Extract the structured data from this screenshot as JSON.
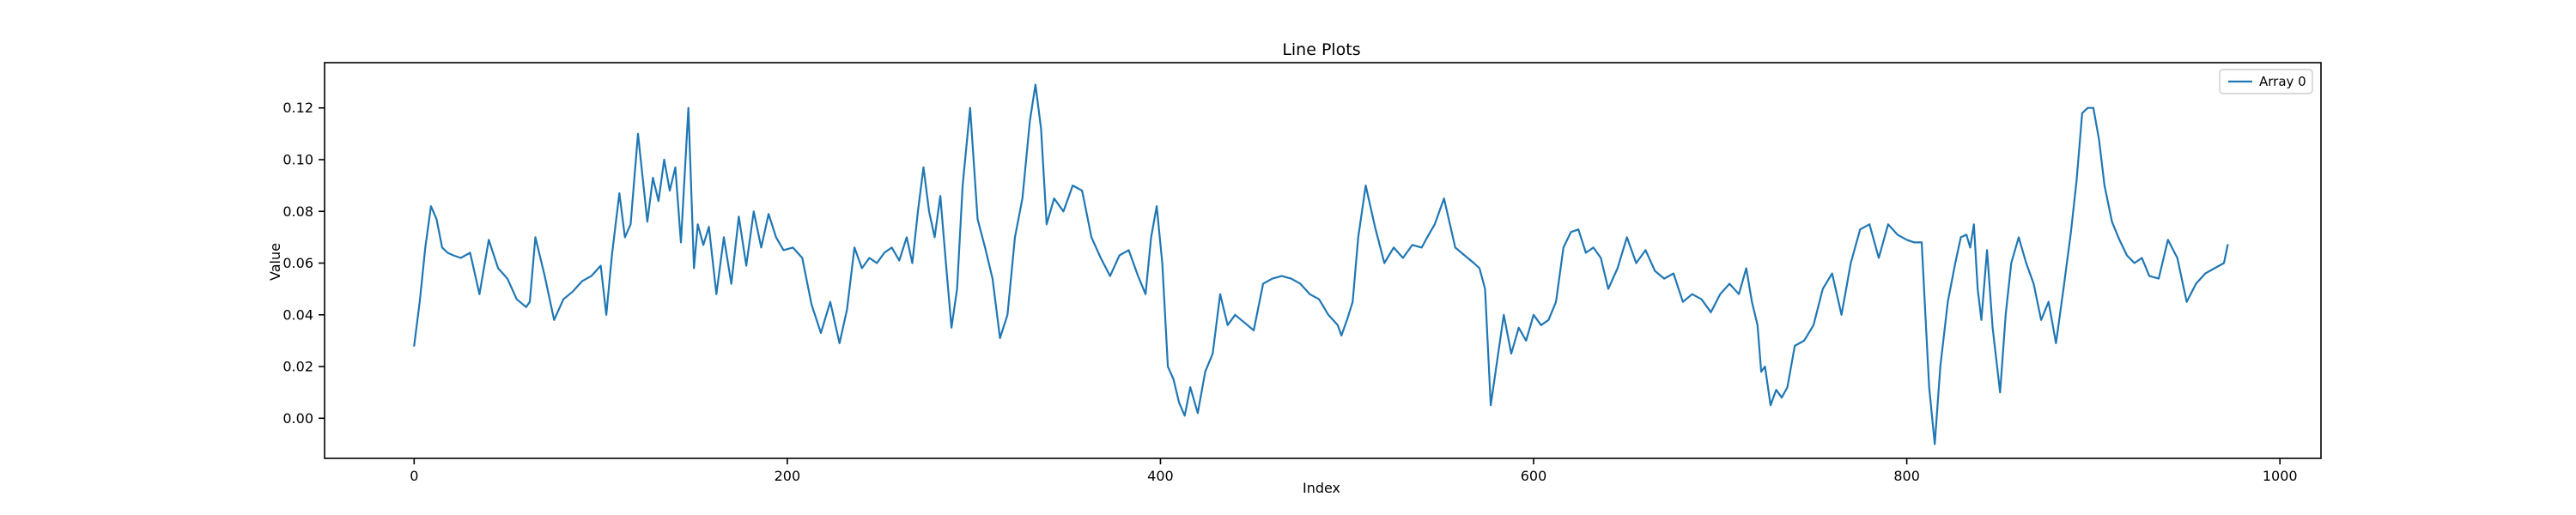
{
  "chart_data": {
    "type": "line",
    "title": "Line Plots",
    "xlabel": "Index",
    "ylabel": "Value",
    "xlim": [
      -48,
      1022
    ],
    "ylim": [
      -0.0155,
      0.1375
    ],
    "xticks": [
      0,
      200,
      400,
      600,
      800,
      1000
    ],
    "yticks": [
      0.0,
      0.02,
      0.04,
      0.06,
      0.08,
      0.1,
      0.12
    ],
    "xtick_labels": [
      "0",
      "200",
      "400",
      "600",
      "800",
      "1000"
    ],
    "ytick_labels": [
      "0.00",
      "0.02",
      "0.04",
      "0.06",
      "0.08",
      "0.10",
      "0.12"
    ],
    "grid": false,
    "legend": {
      "position": "top-right",
      "entries": [
        "Array 0"
      ]
    },
    "series": [
      {
        "name": "Array 0",
        "color": "#1f77b4",
        "x": [
          0,
          3,
          6,
          9,
          12,
          15,
          18,
          21,
          25,
          30,
          35,
          40,
          45,
          50,
          55,
          60,
          62,
          65,
          70,
          75,
          80,
          85,
          90,
          95,
          100,
          103,
          106,
          110,
          113,
          116,
          120,
          125,
          128,
          131,
          134,
          137,
          140,
          143,
          147,
          150,
          152,
          155,
          158,
          162,
          166,
          170,
          174,
          178,
          182,
          186,
          190,
          194,
          198,
          203,
          208,
          213,
          218,
          223,
          228,
          232,
          236,
          240,
          244,
          248,
          252,
          256,
          260,
          264,
          267,
          270,
          273,
          276,
          279,
          282,
          285,
          288,
          291,
          294,
          298,
          302,
          306,
          310,
          314,
          318,
          322,
          326,
          330,
          333,
          336,
          339,
          343,
          348,
          353,
          358,
          363,
          368,
          373,
          378,
          383,
          388,
          392,
          395,
          398,
          401,
          404,
          407,
          410,
          413,
          416,
          420,
          424,
          428,
          432,
          436,
          440,
          445,
          450,
          455,
          460,
          465,
          470,
          475,
          480,
          485,
          490,
          495,
          497,
          500,
          503,
          506,
          510,
          515,
          520,
          525,
          530,
          535,
          540,
          543,
          547,
          552,
          558,
          563,
          568,
          571,
          574,
          577,
          580,
          584,
          588,
          592,
          596,
          600,
          604,
          608,
          612,
          616,
          620,
          624,
          628,
          632,
          636,
          640,
          645,
          650,
          655,
          660,
          665,
          670,
          675,
          680,
          685,
          690,
          695,
          700,
          705,
          710,
          714,
          717,
          720,
          722,
          724,
          727,
          730,
          733,
          736,
          740,
          745,
          750,
          755,
          760,
          765,
          770,
          775,
          780,
          785,
          790,
          795,
          800,
          804,
          808,
          810,
          812,
          815,
          818,
          822,
          826,
          829,
          832,
          834,
          836,
          838,
          840,
          843,
          846,
          850,
          853,
          856,
          860,
          864,
          868,
          872,
          876,
          880,
          884,
          888,
          891,
          894,
          897,
          900,
          903,
          906,
          910,
          914,
          918,
          922,
          926,
          930,
          935,
          940,
          945,
          950,
          955,
          960,
          965,
          970,
          972
        ],
        "values": [
          0.028,
          0.045,
          0.066,
          0.082,
          0.077,
          0.066,
          0.064,
          0.063,
          0.062,
          0.064,
          0.048,
          0.069,
          0.058,
          0.054,
          0.046,
          0.043,
          0.045,
          0.07,
          0.055,
          0.038,
          0.046,
          0.049,
          0.053,
          0.055,
          0.059,
          0.04,
          0.063,
          0.087,
          0.07,
          0.075,
          0.11,
          0.076,
          0.093,
          0.084,
          0.1,
          0.088,
          0.097,
          0.068,
          0.12,
          0.058,
          0.075,
          0.067,
          0.074,
          0.048,
          0.07,
          0.052,
          0.078,
          0.059,
          0.08,
          0.066,
          0.079,
          0.07,
          0.065,
          0.066,
          0.062,
          0.044,
          0.033,
          0.045,
          0.029,
          0.042,
          0.066,
          0.058,
          0.062,
          0.06,
          0.064,
          0.066,
          0.061,
          0.07,
          0.06,
          0.08,
          0.097,
          0.08,
          0.07,
          0.086,
          0.06,
          0.035,
          0.05,
          0.09,
          0.12,
          0.077,
          0.066,
          0.054,
          0.031,
          0.04,
          0.07,
          0.085,
          0.115,
          0.129,
          0.112,
          0.075,
          0.085,
          0.08,
          0.09,
          0.088,
          0.07,
          0.062,
          0.055,
          0.063,
          0.065,
          0.055,
          0.048,
          0.07,
          0.082,
          0.06,
          0.02,
          0.015,
          0.006,
          0.001,
          0.012,
          0.002,
          0.018,
          0.025,
          0.048,
          0.036,
          0.04,
          0.037,
          0.034,
          0.052,
          0.054,
          0.055,
          0.054,
          0.052,
          0.048,
          0.046,
          0.04,
          0.036,
          0.032,
          0.038,
          0.045,
          0.07,
          0.09,
          0.074,
          0.06,
          0.066,
          0.062,
          0.067,
          0.066,
          0.07,
          0.075,
          0.085,
          0.066,
          0.063,
          0.06,
          0.058,
          0.05,
          0.005,
          0.02,
          0.04,
          0.025,
          0.035,
          0.03,
          0.04,
          0.036,
          0.038,
          0.045,
          0.066,
          0.072,
          0.073,
          0.064,
          0.066,
          0.062,
          0.05,
          0.058,
          0.07,
          0.06,
          0.065,
          0.057,
          0.054,
          0.056,
          0.045,
          0.048,
          0.046,
          0.041,
          0.048,
          0.052,
          0.048,
          0.058,
          0.045,
          0.036,
          0.018,
          0.02,
          0.005,
          0.011,
          0.008,
          0.012,
          0.028,
          0.03,
          0.036,
          0.05,
          0.056,
          0.04,
          0.06,
          0.073,
          0.075,
          0.062,
          0.075,
          0.071,
          0.069,
          0.068,
          0.068,
          0.04,
          0.012,
          -0.01,
          0.02,
          0.045,
          0.06,
          0.07,
          0.071,
          0.066,
          0.075,
          0.05,
          0.038,
          0.065,
          0.035,
          0.01,
          0.04,
          0.06,
          0.07,
          0.06,
          0.052,
          0.038,
          0.045,
          0.029,
          0.05,
          0.072,
          0.092,
          0.118,
          0.12,
          0.12,
          0.108,
          0.09,
          0.076,
          0.069,
          0.063,
          0.06,
          0.062,
          0.055,
          0.054,
          0.069,
          0.062,
          0.045,
          0.052,
          0.056,
          0.058,
          0.06,
          0.067
        ]
      }
    ]
  }
}
